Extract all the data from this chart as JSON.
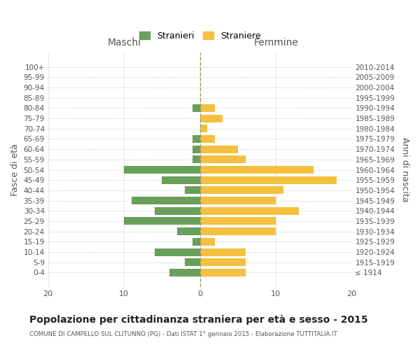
{
  "age_groups": [
    "100+",
    "95-99",
    "90-94",
    "85-89",
    "80-84",
    "75-79",
    "70-74",
    "65-69",
    "60-64",
    "55-59",
    "50-54",
    "45-49",
    "40-44",
    "35-39",
    "30-34",
    "25-29",
    "20-24",
    "15-19",
    "10-14",
    "5-9",
    "0-4"
  ],
  "birth_years": [
    "≤ 1914",
    "1915-1919",
    "1920-1924",
    "1925-1929",
    "1930-1934",
    "1935-1939",
    "1940-1944",
    "1945-1949",
    "1950-1954",
    "1955-1959",
    "1960-1964",
    "1965-1969",
    "1970-1974",
    "1975-1979",
    "1980-1984",
    "1985-1989",
    "1990-1994",
    "1995-1999",
    "2000-2004",
    "2005-2009",
    "2010-2014"
  ],
  "males": [
    0,
    0,
    0,
    0,
    1,
    0,
    0,
    1,
    1,
    1,
    10,
    5,
    2,
    9,
    6,
    10,
    3,
    1,
    6,
    2,
    4
  ],
  "females": [
    0,
    0,
    0,
    0,
    2,
    3,
    1,
    2,
    5,
    6,
    15,
    18,
    11,
    10,
    13,
    10,
    10,
    2,
    6,
    6,
    6
  ],
  "male_color": "#6a9f5b",
  "female_color": "#f5c040",
  "title": "Popolazione per cittadinanza straniera per età e sesso - 2015",
  "subtitle": "COMUNE DI CAMPELLO SUL CLITUNNO (PG) - Dati ISTAT 1° gennaio 2015 - Elaborazione TUTTITALIA.IT",
  "xlabel_left": "Maschi",
  "xlabel_right": "Femmine",
  "ylabel_left": "Fasce di età",
  "ylabel_right": "Anni di nascita",
  "legend_male": "Stranieri",
  "legend_female": "Straniere",
  "xlim": 20,
  "background_color": "#ffffff",
  "grid_color": "#cccccc",
  "dashed_line_color": "#999966"
}
